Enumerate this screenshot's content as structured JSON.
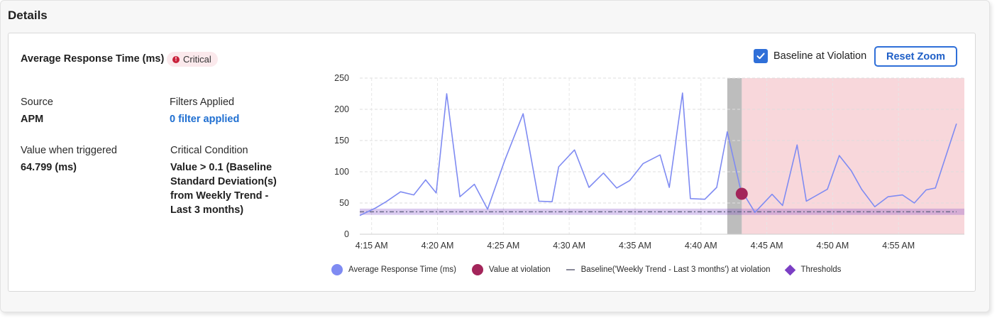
{
  "section": {
    "title": "Details"
  },
  "card": {
    "title": "Average Response Time (ms)",
    "badge": {
      "label": "Critical",
      "icon": "alert-icon",
      "color": "#c9213b"
    }
  },
  "info": {
    "source_label": "Source",
    "source_value": "APM",
    "filters_label": "Filters Applied",
    "filters_value": "0 filter applied",
    "value_label": "Value when triggered",
    "value_value": "64.799 (ms)",
    "condition_label": "Critical Condition",
    "condition_lines": [
      "Value > 0.1 (Baseline",
      "Standard Deviation(s)",
      "from Weekly Trend -",
      "Last 3 months)"
    ]
  },
  "controls": {
    "baseline_checkbox_label": "Baseline at Violation",
    "baseline_checked": true,
    "reset_zoom_label": "Reset Zoom"
  },
  "legend": [
    {
      "label": "Average Response Time (ms)",
      "color": "#7f8bf2",
      "shape": "circle"
    },
    {
      "label": "Value at violation",
      "color": "#a3255a",
      "shape": "circle"
    },
    {
      "label": "Baseline('Weekly Trend - Last 3 months') at violation",
      "color": "#8a8a9a",
      "shape": "dash"
    },
    {
      "label": "Thresholds",
      "color": "#7b3fc4",
      "shape": "diamond"
    }
  ],
  "chart_data": {
    "type": "line",
    "y_ticks": [
      "250",
      "200",
      "150",
      "100",
      "50",
      "0"
    ],
    "ylim": [
      0,
      250
    ],
    "x_ticks": [
      "4:15 AM",
      "4:20 AM",
      "4:25 AM",
      "4:30 AM",
      "4:35 AM",
      "4:40 AM",
      "4:45 AM",
      "4:50 AM",
      "4:55 AM"
    ],
    "xlim": [
      4.1,
      50.0
    ],
    "grid": true,
    "series": [
      {
        "name": "Average Response Time (ms)",
        "color": "#7f8bf2",
        "x": [
          4.1,
          5.3,
          6.1,
          7.2,
          8.2,
          9.1,
          9.9,
          10.7,
          11.7,
          12.8,
          13.8,
          15.1,
          16.5,
          17.7,
          18.7,
          19.2,
          20.4,
          21.5,
          22.6,
          23.6,
          24.6,
          25.6,
          26.9,
          27.6,
          28.6,
          29.2,
          30.3,
          31.2,
          32.0,
          33.0,
          34.1,
          35.4,
          36.2,
          37.3,
          38.0,
          39.6,
          40.5,
          41.4,
          42.2,
          43.2,
          44.2,
          45.3,
          46.2,
          47.1,
          47.8,
          49.4
        ],
        "y": [
          30,
          42,
          52,
          68,
          63,
          87,
          66,
          225,
          60,
          80,
          40,
          118,
          193,
          53,
          52,
          108,
          135,
          75,
          98,
          74,
          86,
          113,
          127,
          75,
          226,
          57,
          56,
          75,
          164,
          73,
          35,
          64,
          46,
          143,
          53,
          72,
          126,
          102,
          72,
          44,
          60,
          63,
          50,
          71,
          74,
          177
        ]
      }
    ],
    "violation": {
      "x": 33.1,
      "y": 64.799,
      "label": "Value at violation",
      "color": "#a3255a"
    },
    "baseline": {
      "y": 36,
      "color": "#8a8a9a"
    },
    "threshold_band": {
      "y_low": 31,
      "y_high": 41,
      "color": "#7b3fc4"
    },
    "violation_marker_band": {
      "x_start": 32.0,
      "x_end": 33.1,
      "color": "#bdbdbd"
    },
    "violation_region": {
      "x_start": 33.1,
      "x_end": 50.0,
      "color": "#f5c9cf"
    }
  }
}
